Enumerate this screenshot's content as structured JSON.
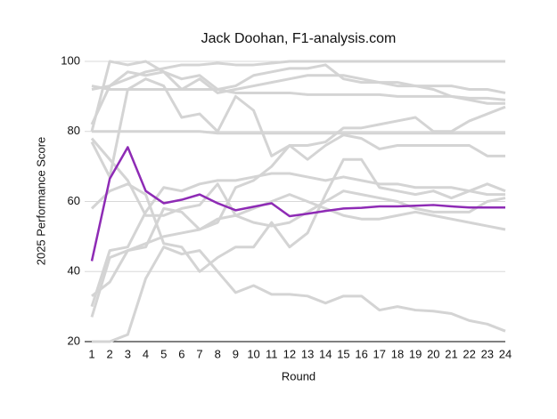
{
  "chart_data": {
    "type": "line",
    "title": "Jack Doohan, F1-analysis.com",
    "xlabel": "Round",
    "ylabel": "2025 Performance Score",
    "x": [
      1,
      2,
      3,
      4,
      5,
      6,
      7,
      8,
      9,
      10,
      11,
      12,
      13,
      14,
      15,
      16,
      17,
      18,
      19,
      20,
      21,
      22,
      23,
      24
    ],
    "xlim": [
      1,
      24
    ],
    "ylim": [
      20,
      100
    ],
    "yticks": [
      20,
      40,
      60,
      80,
      100
    ],
    "grid": true,
    "series": [
      {
        "color": "#d4d4d4",
        "values": [
          92,
          93,
          95,
          97,
          98,
          99,
          99,
          99.5,
          99,
          99,
          99.5,
          100,
          100,
          100,
          100,
          100,
          100,
          100,
          100,
          100,
          100,
          100,
          100,
          100
        ]
      },
      {
        "color": "#d4d4d4",
        "values": [
          80,
          100,
          99,
          100,
          97,
          95,
          96,
          92,
          93,
          96,
          97,
          98,
          98,
          99,
          95,
          94,
          94,
          93,
          93,
          93,
          93,
          92,
          92,
          91
        ]
      },
      {
        "color": "#d4d4d4",
        "values": [
          93,
          92,
          92,
          92,
          92,
          92,
          92,
          92,
          91,
          91,
          91,
          91,
          90.5,
          90.5,
          90.5,
          90.5,
          90.5,
          90,
          90,
          90,
          90,
          89.5,
          89.5,
          89
        ]
      },
      {
        "color": "#d4d4d4",
        "values": [
          82,
          93,
          97,
          96,
          97,
          92,
          95,
          91,
          92,
          93,
          94,
          95,
          96,
          96,
          96,
          95,
          94,
          94,
          93,
          92,
          90,
          89,
          88,
          88
        ]
      },
      {
        "color": "#d4d4d4",
        "values": [
          80,
          80,
          80,
          80,
          80,
          80,
          80,
          79.5,
          79.5,
          79.5,
          79.5,
          79.5,
          79.5,
          79.5,
          79.5,
          79.5,
          79.5,
          79.5,
          79.5,
          79.5,
          79.5,
          79.5,
          79.5,
          79.5
        ]
      },
      {
        "color": "#d4d4d4",
        "values": [
          77,
          67,
          92,
          95,
          93,
          84,
          85,
          80,
          90,
          86,
          73,
          76,
          76,
          77,
          81,
          81,
          82,
          83,
          84,
          80,
          80,
          83,
          85,
          87
        ]
      },
      {
        "color": "#d4d4d4",
        "values": [
          30,
          46,
          47,
          57,
          64,
          63,
          65,
          66,
          66,
          67,
          68,
          68,
          67,
          66,
          67,
          66,
          65,
          65,
          64,
          64,
          64,
          63,
          62,
          62
        ]
      },
      {
        "color": "#d4d4d4",
        "values": [
          27,
          44,
          46,
          48,
          50,
          51,
          52,
          55,
          56,
          58,
          60,
          62,
          60,
          58,
          56,
          55,
          55,
          56,
          57,
          56,
          55,
          54,
          53,
          52
        ]
      },
      {
        "color": "#d4d4d4",
        "values": [
          20,
          20,
          22,
          38,
          47,
          45,
          46,
          40,
          34,
          36,
          33.5,
          33.5,
          33,
          31,
          33,
          33,
          29,
          30,
          29,
          28.7,
          28,
          26,
          25,
          23
        ]
      },
      {
        "color": "#d4d4d4",
        "values": [
          33,
          37,
          46,
          47,
          58,
          57,
          52,
          54,
          64,
          66,
          70,
          76,
          72,
          76,
          79,
          78,
          75,
          76,
          76,
          76,
          76,
          76,
          73,
          73
        ]
      },
      {
        "color": "#d4d4d4",
        "values": [
          58,
          63,
          65,
          62,
          48,
          47,
          40,
          44,
          47,
          47,
          54,
          47,
          51,
          62,
          72,
          72,
          64,
          63,
          62,
          63,
          61,
          63,
          65,
          63
        ]
      },
      {
        "color": "#d4d4d4",
        "values": [
          78,
          72,
          66,
          56,
          56,
          58,
          59,
          65,
          56,
          54,
          53,
          54,
          57,
          60,
          63,
          62,
          61,
          60,
          58,
          57,
          57,
          57,
          60,
          61
        ]
      },
      {
        "color": "#8e2bb5",
        "values": [
          43,
          66.5,
          75.5,
          63,
          59.5,
          60.5,
          62,
          59.5,
          57.5,
          58.5,
          59.5,
          55.8,
          56.5,
          57.3,
          58,
          58.2,
          58.6,
          58.6,
          58.8,
          59,
          58.6,
          58.3,
          58.3,
          58.3
        ]
      }
    ]
  }
}
